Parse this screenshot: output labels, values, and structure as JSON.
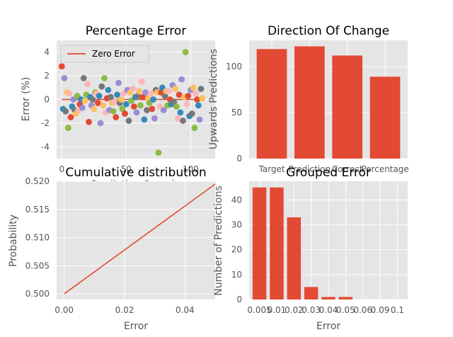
{
  "chart_data": [
    {
      "id": "pct",
      "type": "scatter",
      "title": "Percentage Error",
      "xlabel": "Prediction Sample",
      "ylabel": "Error (%)",
      "xlim": [
        -4,
        119
      ],
      "ylim": [
        -5,
        5
      ],
      "xticks": [
        0,
        50,
        100
      ],
      "yticks": [
        -4,
        -2,
        0,
        2,
        4
      ],
      "reference_line": {
        "name": "Zero Error",
        "y": 0,
        "color": "#E24A33"
      },
      "legend": {
        "position": "top-left",
        "entries": [
          "Zero Error"
        ]
      },
      "palette": [
        "#E24A33",
        "#348ABD",
        "#988ED5",
        "#777777",
        "#FBC15E",
        "#8EBA42",
        "#FFB5B8"
      ],
      "points": [
        [
          0,
          2.8
        ],
        [
          1,
          -0.8
        ],
        [
          2,
          1.8
        ],
        [
          3,
          -1.0
        ],
        [
          4,
          0.6
        ],
        [
          5,
          -2.4
        ],
        [
          6,
          0.5
        ],
        [
          7,
          -1.5
        ],
        [
          8,
          -0.6
        ],
        [
          9,
          0.0
        ],
        [
          10,
          -0.9
        ],
        [
          11,
          -1.2
        ],
        [
          12,
          0.3
        ],
        [
          13,
          -0.9
        ],
        [
          14,
          -0.4
        ],
        [
          15,
          0.0
        ],
        [
          16,
          -0.7
        ],
        [
          17,
          1.8
        ],
        [
          18,
          -0.1
        ],
        [
          19,
          0.4
        ],
        [
          20,
          1.3
        ],
        [
          21,
          -1.9
        ],
        [
          22,
          0.2
        ],
        [
          23,
          -0.5
        ],
        [
          24,
          0.0
        ],
        [
          25,
          -0.8
        ],
        [
          26,
          0.6
        ],
        [
          27,
          0.5
        ],
        [
          28,
          -0.3
        ],
        [
          29,
          0.3
        ],
        [
          30,
          -2.0
        ],
        [
          31,
          1.1
        ],
        [
          32,
          -0.5
        ],
        [
          33,
          1.8
        ],
        [
          34,
          -1.1
        ],
        [
          35,
          0.1
        ],
        [
          36,
          0.8
        ],
        [
          37,
          -0.9
        ],
        [
          38,
          0.2
        ],
        [
          39,
          -0.3
        ],
        [
          40,
          -1.0
        ],
        [
          41,
          -0.2
        ],
        [
          42,
          -1.5
        ],
        [
          43,
          0.4
        ],
        [
          44,
          1.4
        ],
        [
          45,
          -0.3
        ],
        [
          46,
          0.0
        ],
        [
          47,
          -0.8
        ],
        [
          48,
          0.5
        ],
        [
          49,
          -1.2
        ],
        [
          50,
          -0.4
        ],
        [
          51,
          0.8
        ],
        [
          52,
          -1.8
        ],
        [
          53,
          0.6
        ],
        [
          54,
          -0.1
        ],
        [
          55,
          0.9
        ],
        [
          56,
          -0.6
        ],
        [
          57,
          0.2
        ],
        [
          58,
          -1.1
        ],
        [
          59,
          0.3
        ],
        [
          60,
          0.7
        ],
        [
          61,
          -0.5
        ],
        [
          62,
          1.5
        ],
        [
          63,
          0.2
        ],
        [
          64,
          -1.7
        ],
        [
          65,
          0.6
        ],
        [
          66,
          -0.9
        ],
        [
          67,
          0.1
        ],
        [
          68,
          -0.3
        ],
        [
          69,
          0.5
        ],
        [
          70,
          -0.8
        ],
        [
          71,
          0.0
        ],
        [
          72,
          -1.6
        ],
        [
          73,
          0.8
        ],
        [
          74,
          0.6
        ],
        [
          75,
          -4.5
        ],
        [
          76,
          -0.6
        ],
        [
          77,
          0.6
        ],
        [
          78,
          1.0
        ],
        [
          79,
          -0.9
        ],
        [
          80,
          0.3
        ],
        [
          81,
          0.7
        ],
        [
          82,
          -0.5
        ],
        [
          83,
          0.7
        ],
        [
          84,
          0.0
        ],
        [
          85,
          -0.4
        ],
        [
          86,
          1.2
        ],
        [
          87,
          -0.2
        ],
        [
          88,
          0.9
        ],
        [
          89,
          -0.6
        ],
        [
          90,
          -1.6
        ],
        [
          91,
          0.4
        ],
        [
          92,
          -1.1
        ],
        [
          93,
          1.7
        ],
        [
          94,
          -1.8
        ],
        [
          95,
          0.2
        ],
        [
          96,
          4.0
        ],
        [
          97,
          -0.4
        ],
        [
          98,
          0.3
        ],
        [
          99,
          -1.4
        ],
        [
          100,
          0.8
        ],
        [
          101,
          -1.2
        ],
        [
          102,
          1.0
        ],
        [
          103,
          -2.4
        ],
        [
          104,
          0.5
        ],
        [
          105,
          0.0
        ],
        [
          106,
          -0.5
        ],
        [
          107,
          -1.7
        ],
        [
          108,
          0.9
        ],
        [
          109,
          0.1
        ]
      ]
    },
    {
      "id": "dir",
      "type": "bar",
      "title": "Direction Of Change",
      "xlabel": "",
      "ylabel": "Upwards Predictions",
      "categories": [
        "Target",
        "Prediction",
        "Correct",
        "Percentage"
      ],
      "values": [
        119,
        122,
        112,
        89
      ],
      "ylim": [
        0,
        128.5
      ],
      "yticks": [
        0,
        50,
        100
      ],
      "color": "#E24A33"
    },
    {
      "id": "cum",
      "type": "line",
      "title": "Cumulative distribution",
      "xlabel": "Error",
      "ylabel": "Probability",
      "x": [
        0,
        0.05
      ],
      "y": [
        0.5,
        0.5195
      ],
      "xlim": [
        -0.0025,
        0.05
      ],
      "ylim": [
        0.499,
        0.52
      ],
      "xticks": [
        0.0,
        0.02,
        0.04
      ],
      "xtick_labels": [
        "0.00",
        "0.02",
        "0.04"
      ],
      "yticks": [
        0.5,
        0.505,
        0.51,
        0.515,
        0.52
      ],
      "ytick_labels": [
        "0.500",
        "0.505",
        "0.510",
        "0.515",
        "0.520"
      ],
      "color": "#E24A33"
    },
    {
      "id": "grp",
      "type": "bar",
      "title": "Grouped Error",
      "xlabel": "Error",
      "ylabel": "Number of Predictions",
      "categories": [
        "0.005",
        "0.01",
        "0.02",
        "0.03",
        "0.04",
        "0.05",
        "0.06",
        "0.09",
        "0.1"
      ],
      "values": [
        45,
        45,
        33,
        5,
        1,
        1,
        0,
        0,
        0
      ],
      "ylim": [
        0,
        47.5
      ],
      "yticks": [
        0,
        10,
        20,
        30,
        40
      ],
      "color": "#E24A33"
    }
  ]
}
